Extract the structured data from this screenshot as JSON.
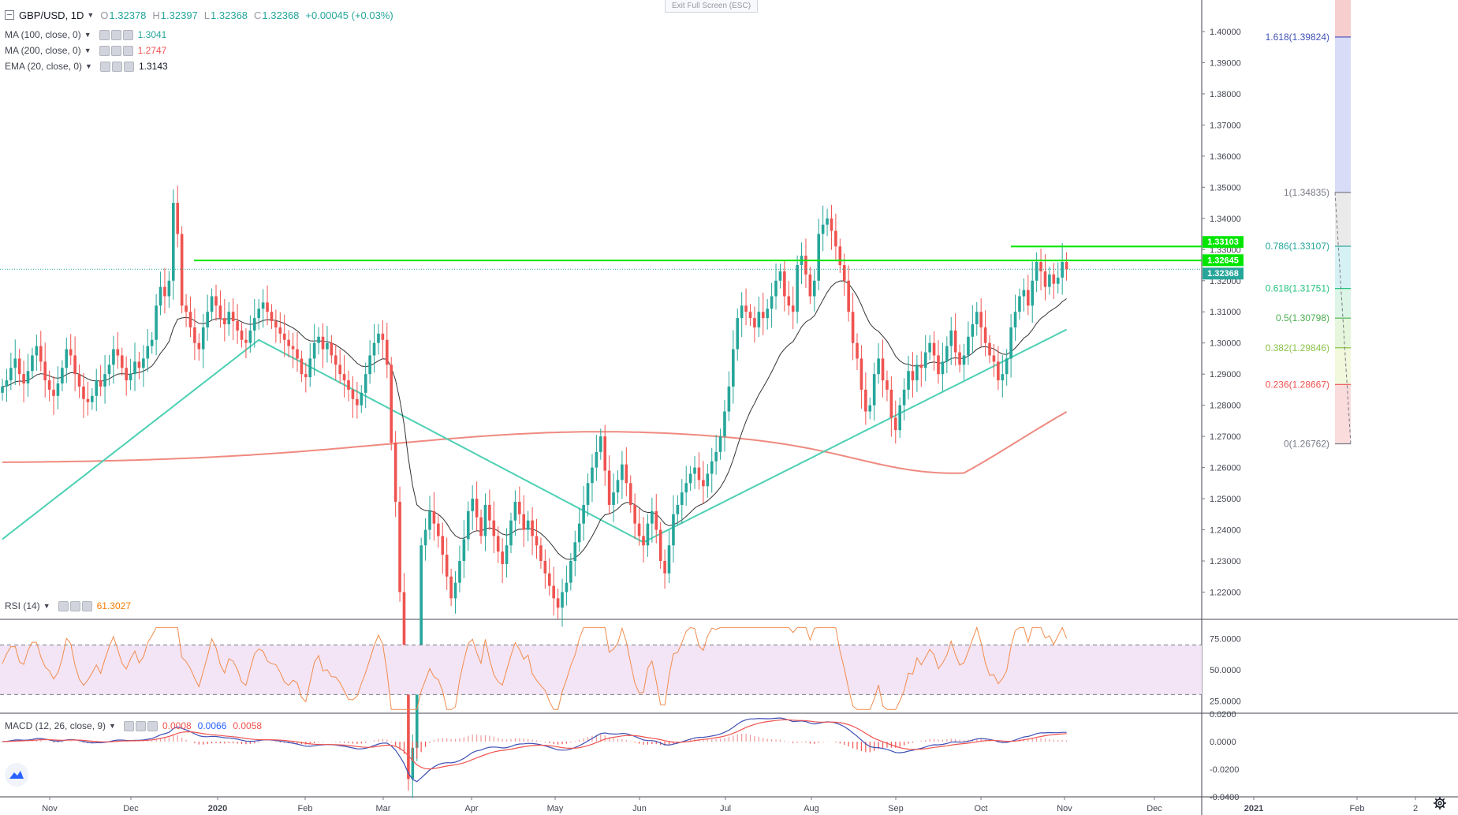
{
  "header": {
    "symbol": "GBP/USD, 1D",
    "open_label": "O",
    "open": "1.32378",
    "high_label": "H",
    "high": "1.32397",
    "low_label": "L",
    "low": "1.32368",
    "close_label": "C",
    "close": "1.32368",
    "change": "+0.00045 (+0.03%)",
    "exit_fullscreen": "Exit Full Screen (ESC)"
  },
  "indicators": [
    {
      "label": "MA (100, close, 0)",
      "value": "1.3041",
      "color": "#26a69a"
    },
    {
      "label": "MA (200, close, 0)",
      "value": "1.2747",
      "color": "#ef5350"
    },
    {
      "label": "EMA (20, close, 0)",
      "value": "1.3143",
      "color": "#131722"
    }
  ],
  "rsi": {
    "label": "RSI (14)",
    "value": "61.3027",
    "color": "#f57c00"
  },
  "macd": {
    "label": "MACD (12, 26, close, 9)",
    "hist": "0.0008",
    "macd": "0.0066",
    "signal": "0.0058",
    "hist_color": "#ef5350",
    "macd_color": "#2962ff",
    "signal_color": "#ef5350"
  },
  "colors": {
    "up": "#26a69a",
    "down": "#ef5350",
    "level": "#00e600",
    "ma100": "#4dd0b4",
    "ma200": "#ef8a80",
    "ema20": "#333333",
    "rsi": "#f28c4e",
    "macd": "#3f51b5",
    "signal": "#ef5350"
  },
  "chart_data": [
    {
      "type": "candlestick",
      "title": "GBP/USD, 1D",
      "time_labels": [
        "Nov",
        "Dec",
        "2020",
        "Feb",
        "Mar",
        "Apr",
        "May",
        "Jun",
        "Jul",
        "Aug",
        "Sep",
        "Oct",
        "Nov",
        "Dec",
        "2021",
        "Feb",
        "2"
      ],
      "ylim": [
        1.21,
        1.41
      ],
      "y_ticks": [
        "1.22000",
        "1.23000",
        "1.24000",
        "1.25000",
        "1.26000",
        "1.27000",
        "1.28000",
        "1.29000",
        "1.30000",
        "1.31000",
        "1.32000",
        "1.33000",
        "1.34000",
        "1.35000",
        "1.36000",
        "1.37000",
        "1.38000",
        "1.39000",
        "1.40000"
      ],
      "price_tags": [
        {
          "label": "1.33103",
          "value": 1.33103,
          "color": "#00e600"
        },
        {
          "label": "1.32645",
          "value": 1.32645,
          "color": "#00e600"
        },
        {
          "label": "1.32368",
          "value": 1.32368,
          "color": "#26a69a"
        }
      ],
      "fibonacci": [
        {
          "label": "1.618(1.39824)",
          "value": 1.39824,
          "color": "#3f51b5",
          "fill": "#d2d6f6"
        },
        {
          "label": "1(1.34835)",
          "value": 1.34835,
          "color": "#787b86",
          "fill": "#e6e6e6"
        },
        {
          "label": "0.786(1.33107)",
          "value": 1.33107,
          "color": "#26a69a",
          "fill": "#cfeef2"
        },
        {
          "label": "0.618(1.31751)",
          "value": 1.31751,
          "color": "#26c281",
          "fill": "#d6f3e2"
        },
        {
          "label": "0.5(1.30798)",
          "value": 1.30798,
          "color": "#4caf50",
          "fill": "#e1f5d6"
        },
        {
          "label": "0.382(1.29846)",
          "value": 1.29846,
          "color": "#8bc34a",
          "fill": "#eef7d6"
        },
        {
          "label": "0.236(1.28667)",
          "value": 1.28667,
          "color": "#ef5350",
          "fill": "#f9d6d6"
        },
        {
          "label": "0(1.26762)",
          "value": 1.26762,
          "color": "#787b86",
          "fill": ""
        }
      ],
      "horizontal_levels": [
        1.3265,
        1.331
      ],
      "last_price": 1.32368,
      "closes": [
        1.286,
        1.288,
        1.292,
        1.295,
        1.29,
        1.287,
        1.291,
        1.296,
        1.299,
        1.294,
        1.288,
        1.285,
        1.283,
        1.287,
        1.292,
        1.298,
        1.296,
        1.29,
        1.286,
        1.282,
        1.281,
        1.283,
        1.288,
        1.286,
        1.29,
        1.293,
        1.298,
        1.296,
        1.292,
        1.288,
        1.29,
        1.294,
        1.292,
        1.295,
        1.299,
        1.301,
        1.312,
        1.318,
        1.315,
        1.32,
        1.345,
        1.335,
        1.312,
        1.31,
        1.305,
        1.3,
        1.298,
        1.305,
        1.31,
        1.315,
        1.312,
        1.308,
        1.306,
        1.31,
        1.307,
        1.304,
        1.301,
        1.3,
        1.304,
        1.308,
        1.311,
        1.313,
        1.31,
        1.307,
        1.305,
        1.303,
        1.301,
        1.299,
        1.298,
        1.295,
        1.29,
        1.289,
        1.295,
        1.3,
        1.302,
        1.298,
        1.3,
        1.296,
        1.293,
        1.29,
        1.288,
        1.285,
        1.282,
        1.28,
        1.284,
        1.29,
        1.296,
        1.3,
        1.303,
        1.301,
        1.293,
        1.268,
        1.249,
        1.22,
        1.2,
        1.16,
        1.17,
        1.19,
        1.235,
        1.24,
        1.246,
        1.242,
        1.238,
        1.232,
        1.225,
        1.218,
        1.223,
        1.23,
        1.237,
        1.246,
        1.25,
        1.244,
        1.238,
        1.248,
        1.243,
        1.238,
        1.233,
        1.229,
        1.235,
        1.243,
        1.249,
        1.245,
        1.24,
        1.243,
        1.238,
        1.235,
        1.23,
        1.226,
        1.222,
        1.218,
        1.215,
        1.22,
        1.223,
        1.23,
        1.236,
        1.242,
        1.248,
        1.255,
        1.26,
        1.265,
        1.27,
        1.259,
        1.248,
        1.252,
        1.256,
        1.261,
        1.255,
        1.248,
        1.242,
        1.238,
        1.235,
        1.242,
        1.246,
        1.24,
        1.23,
        1.226,
        1.235,
        1.245,
        1.248,
        1.252,
        1.255,
        1.258,
        1.26,
        1.256,
        1.254,
        1.258,
        1.262,
        1.265,
        1.27,
        1.278,
        1.286,
        1.298,
        1.308,
        1.312,
        1.31,
        1.308,
        1.305,
        1.31,
        1.308,
        1.311,
        1.315,
        1.32,
        1.323,
        1.315,
        1.312,
        1.31,
        1.325,
        1.328,
        1.322,
        1.315,
        1.32,
        1.335,
        1.338,
        1.34,
        1.336,
        1.331,
        1.325,
        1.32,
        1.31,
        1.3,
        1.295,
        1.285,
        1.278,
        1.28,
        1.29,
        1.295,
        1.288,
        1.285,
        1.276,
        1.272,
        1.28,
        1.285,
        1.291,
        1.288,
        1.293,
        1.292,
        1.297,
        1.3,
        1.296,
        1.29,
        1.294,
        1.299,
        1.304,
        1.297,
        1.293,
        1.296,
        1.302,
        1.306,
        1.31,
        1.305,
        1.3,
        1.296,
        1.294,
        1.288,
        1.29,
        1.295,
        1.305,
        1.31,
        1.315,
        1.317,
        1.312,
        1.32,
        1.326,
        1.323,
        1.318,
        1.322,
        1.319,
        1.321,
        1.326,
        1.3237
      ]
    },
    {
      "type": "line",
      "title": "RSI (14)",
      "y_ticks": [
        "25.0000",
        "50.0000",
        "75.0000"
      ],
      "ylim": [
        15,
        90
      ],
      "bands": [
        30,
        70
      ],
      "last": 61.3027
    },
    {
      "type": "line+histogram",
      "title": "MACD (12, 26, close, 9)",
      "y_ticks": [
        "-0.0400",
        "-0.0200",
        "0.0000",
        "0.0200"
      ],
      "ylim": [
        -0.04,
        0.02
      ],
      "last": {
        "histogram": 0.0008,
        "macd": 0.0066,
        "signal": 0.0058
      }
    }
  ]
}
